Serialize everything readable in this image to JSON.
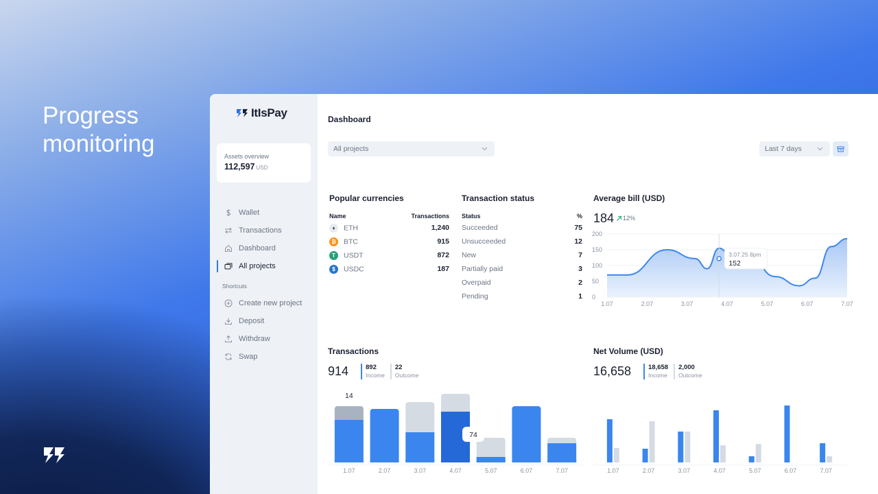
{
  "hero": {
    "line1": "Progress",
    "line2": "monitoring"
  },
  "sidebar": {
    "brand": "ItIsPay",
    "assets": {
      "label": "Assets overview",
      "value": "112,597",
      "unit": "USD"
    },
    "nav": [
      {
        "label": "Wallet",
        "icon": "dollar-icon"
      },
      {
        "label": "Transactions",
        "icon": "arrows-swap-icon"
      },
      {
        "label": "Dashboard",
        "icon": "home-icon"
      },
      {
        "label": "All projects",
        "icon": "folders-icon",
        "active": true
      }
    ],
    "shortcuts_label": "Shortcuts",
    "shortcuts": [
      {
        "label": "Create new project",
        "icon": "plus-circle-icon"
      },
      {
        "label": "Deposit",
        "icon": "download-icon"
      },
      {
        "label": "Withdraw",
        "icon": "upload-icon"
      },
      {
        "label": "Swap",
        "icon": "refresh-icon"
      }
    ]
  },
  "main": {
    "title": "Dashboard",
    "project_select": "All projects",
    "range_select": "Last 7 days"
  },
  "popular_currencies": {
    "title": "Popular currencies",
    "col_name": "Name",
    "col_tx": "Transactions",
    "rows": [
      {
        "name": "ETH",
        "value": "1,240",
        "color": "#e8ebf0",
        "glyph": "♦"
      },
      {
        "name": "BTC",
        "value": "915",
        "color": "#f7931a",
        "glyph": "₿"
      },
      {
        "name": "USDT",
        "value": "872",
        "color": "#26a17b",
        "glyph": "T"
      },
      {
        "name": "USDC",
        "value": "187",
        "color": "#2775ca",
        "glyph": "$"
      }
    ]
  },
  "transaction_status": {
    "title": "Transaction status",
    "col_status": "Status",
    "col_pct": "%",
    "rows": [
      {
        "status": "Succeeded",
        "pct": "75"
      },
      {
        "status": "Unsucceeded",
        "pct": "12"
      },
      {
        "status": "New",
        "pct": "7"
      },
      {
        "status": "Partially paid",
        "pct": "3"
      },
      {
        "status": "Overpaid",
        "pct": "2"
      },
      {
        "status": "Pending",
        "pct": "1"
      }
    ]
  },
  "average_bill": {
    "title": "Average bill (USD)",
    "value": "184",
    "delta": "12%",
    "tooltip_date": "3.07.25 8pm",
    "tooltip_value": "152"
  },
  "transactions": {
    "title": "Transactions",
    "total": "914",
    "income": "892",
    "income_label": "Income",
    "outcome": "22",
    "outcome_label": "Outcome",
    "badge_top": "14",
    "badge_mid": "74"
  },
  "net_volume": {
    "title": "Net Volume (USD)",
    "total": "16,658",
    "income": "18,658",
    "income_label": "Income",
    "outcome": "2,000",
    "outcome_label": "Outcome"
  },
  "chart_data": [
    {
      "type": "area",
      "title": "Average bill (USD)",
      "categories": [
        "1.07",
        "2.07",
        "3.07",
        "4.07",
        "5.07",
        "6.07",
        "7.07"
      ],
      "x": [
        0,
        0.5,
        1.5,
        2.2,
        2.5,
        2.8,
        3.2,
        3.6,
        4.2,
        4.8,
        5.2,
        5.6,
        6.0
      ],
      "values": [
        70,
        70,
        150,
        122,
        90,
        155,
        110,
        120,
        65,
        36,
        60,
        160,
        185
      ],
      "ylim": [
        0,
        200
      ],
      "yticks": [
        0,
        50,
        100,
        150,
        200
      ],
      "grid": true,
      "colors": {
        "line": "#3d86ec",
        "fill_top": "#a9c8f5",
        "fill_bottom": "#eaf2fd"
      }
    },
    {
      "type": "bar",
      "title": "Transactions",
      "categories": [
        "1.07",
        "2.07",
        "3.07",
        "4.07",
        "5.07",
        "6.07",
        "7.07"
      ],
      "series": [
        {
          "name": "Income",
          "values": [
            62,
            78,
            44,
            74,
            8,
            82,
            28
          ]
        },
        {
          "name": "Outcome",
          "values": [
            20,
            0,
            44,
            26,
            28,
            0,
            8
          ]
        }
      ],
      "stacked": true,
      "colors": {
        "income": "#3a86ee",
        "income_hi": "#2569d9",
        "outcome": "#d5dbe3",
        "outcome_hi": "#a8b3c2"
      }
    },
    {
      "type": "bar",
      "title": "Net Volume (USD)",
      "categories": [
        "1.07",
        "2.07",
        "3.07",
        "4.07",
        "5.07",
        "6.07",
        "7.07"
      ],
      "series": [
        {
          "name": "Income",
          "values": [
            63,
            20,
            45,
            76,
            9,
            83,
            28
          ]
        },
        {
          "name": "Outcome",
          "values": [
            21,
            60,
            45,
            25,
            27,
            0,
            9
          ]
        }
      ],
      "stacked": false,
      "colors": {
        "income": "#3a86ee",
        "outcome": "#d5dbe3"
      }
    }
  ]
}
